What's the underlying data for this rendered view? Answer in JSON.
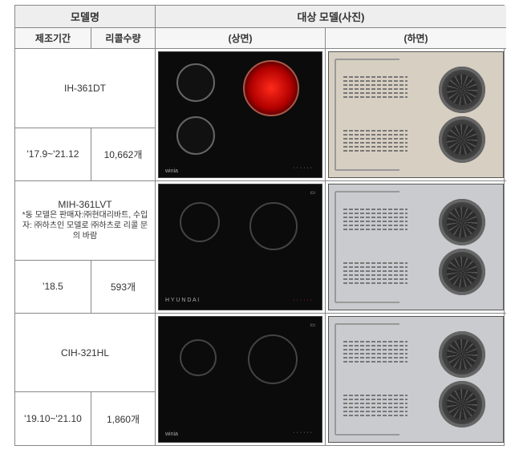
{
  "header": {
    "model_name": "모델명",
    "photo_title": "대상  모델(사진)",
    "period": "제조기간",
    "recall_qty": "리콜수량",
    "front": "(상면)",
    "back": "(하면)"
  },
  "cooktop_colors": {
    "body": "#0b0b0b",
    "burner_outline": "#666666",
    "red_glow": "#ff2a1a"
  },
  "backpanel": {
    "beige_bg": "#d7cfc2",
    "grey_bg": "#c9cbce"
  },
  "rows": [
    {
      "model": "IH-361DT",
      "note": "",
      "period": "'17.9~'21.12",
      "qty": "10,662개",
      "front": {
        "variant": "ih361"
      },
      "back": {
        "bg_key": "beige_bg"
      }
    },
    {
      "model": "MIH-361LVT",
      "note": "*동 모델은 판매자:㈜현대리바트, 수입자: ㈜하츠인 모델로 ㈜하츠로 리콜 문의 바람",
      "period": "'18.5",
      "qty": "593개",
      "front": {
        "variant": "mih361"
      },
      "back": {
        "bg_key": "grey_bg"
      }
    },
    {
      "model": "CIH-321HL",
      "note": "",
      "period": "'19.10~'21.10",
      "qty": "1,860개",
      "front": {
        "variant": "cih321"
      },
      "back": {
        "bg_key": "grey_bg"
      }
    }
  ]
}
